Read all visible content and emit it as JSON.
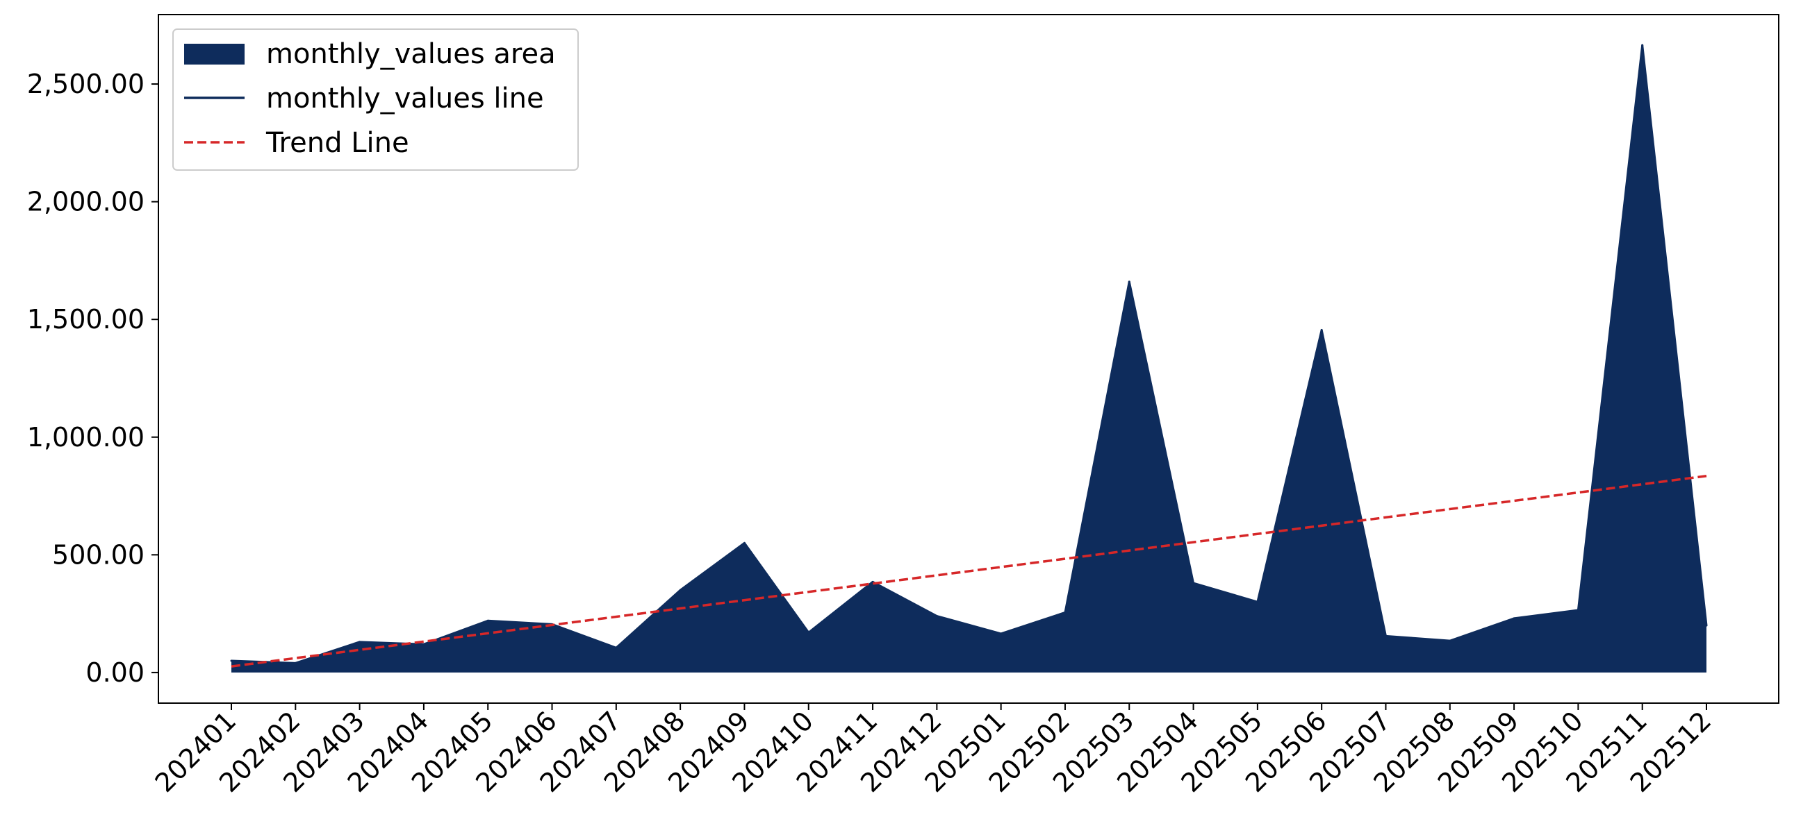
{
  "chart_data": {
    "type": "area",
    "title": "",
    "xlabel": "",
    "ylabel": "",
    "categories": [
      "202401",
      "202402",
      "202403",
      "202404",
      "202405",
      "202406",
      "202407",
      "202408",
      "202409",
      "202410",
      "202411",
      "202412",
      "202501",
      "202502",
      "202503",
      "202504",
      "202505",
      "202506",
      "202507",
      "202508",
      "202509",
      "202510",
      "202511",
      "202512"
    ],
    "series": [
      {
        "name": "monthly_values area",
        "kind": "area",
        "color": "#0e2c5c",
        "values": [
          50,
          40,
          130,
          120,
          220,
          205,
          105,
          350,
          550,
          170,
          385,
          240,
          165,
          255,
          1660,
          380,
          300,
          1455,
          155,
          135,
          230,
          265,
          2665,
          200
        ]
      },
      {
        "name": "monthly_values line",
        "kind": "line",
        "color": "#0e2c5c"
      },
      {
        "name": "Trend Line",
        "kind": "trend",
        "color": "#d62728",
        "style": "dashed",
        "start": 26,
        "end": 835
      }
    ],
    "yticks": [
      0,
      500,
      1000,
      1500,
      2000,
      2500
    ],
    "ytick_labels": [
      "0.00",
      "500.00",
      "1,000.00",
      "1,500.00",
      "2,000.00",
      "2,500.00"
    ],
    "ylim": [
      -130,
      2795
    ],
    "grid": false,
    "legend_position": "top-left"
  }
}
